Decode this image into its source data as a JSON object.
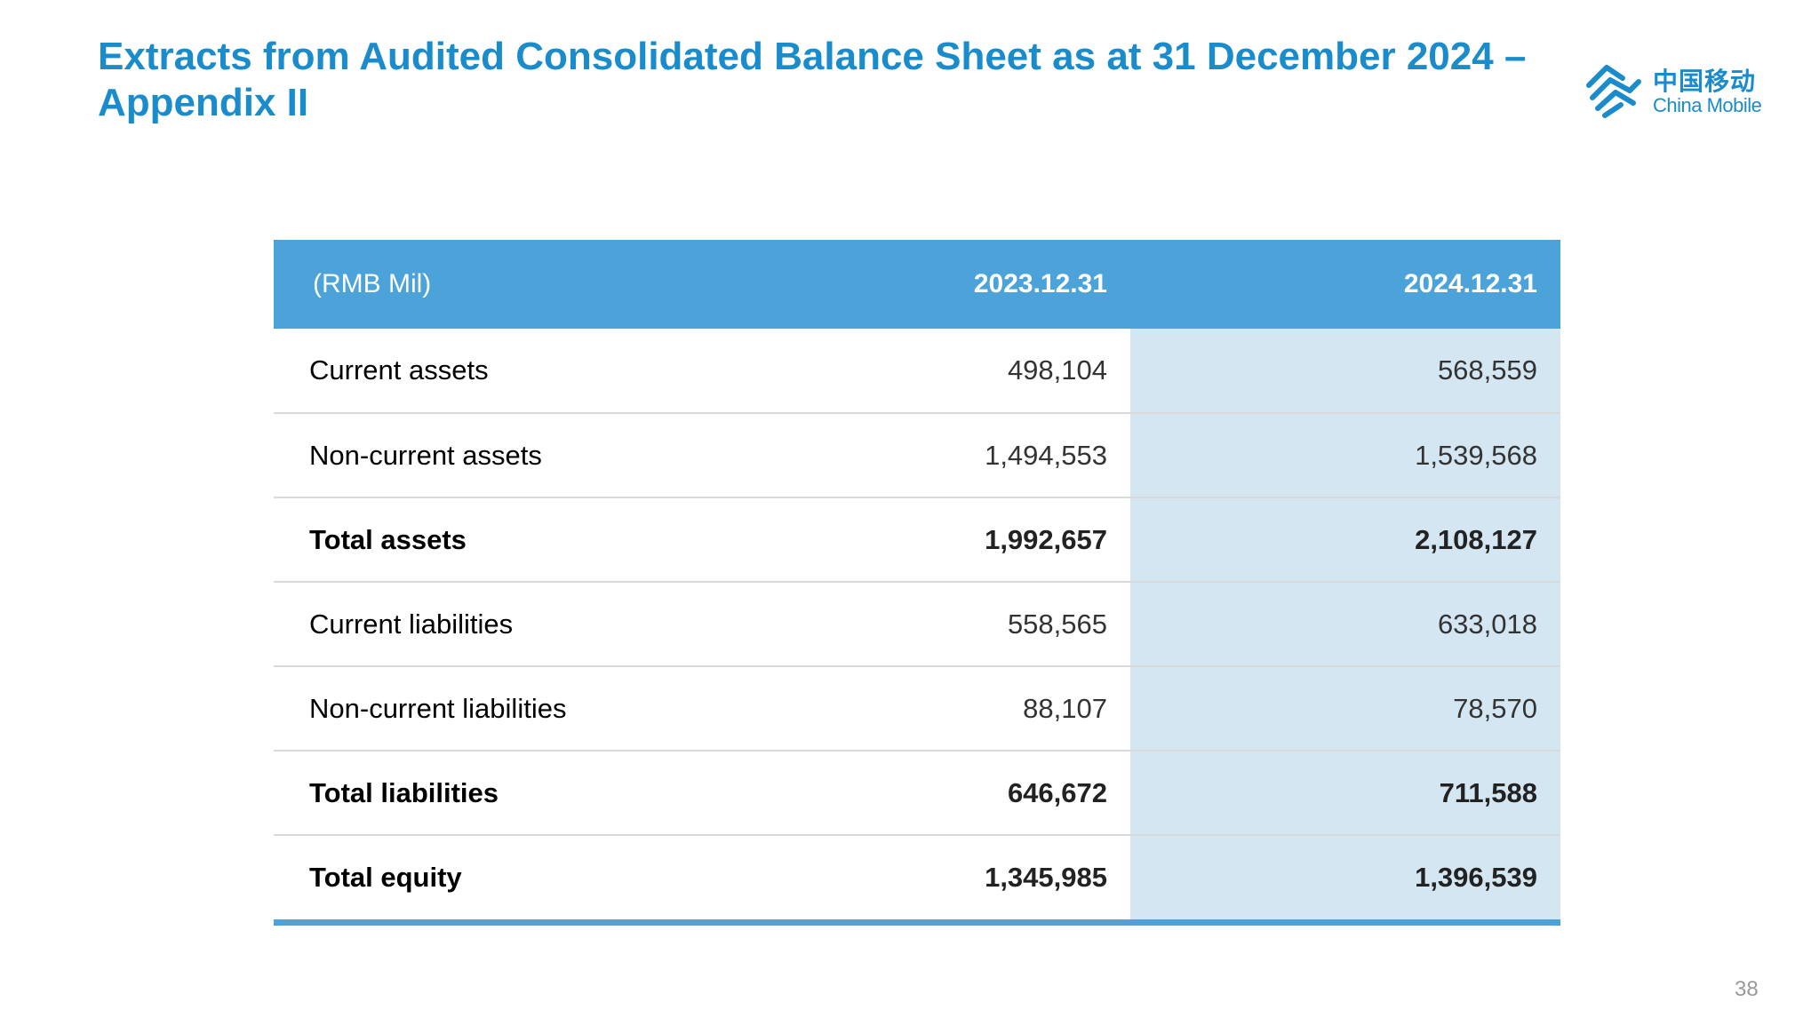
{
  "title": "Extracts from Audited Consolidated Balance Sheet as at 31 December 2024 – Appendix II",
  "logo": {
    "cn_text": "中国移动",
    "en_text": "China Mobile",
    "color": "#1a8ccc"
  },
  "table": {
    "headers": [
      "(RMB Mil)",
      "2023.12.31",
      "2024.12.31"
    ],
    "rows": [
      {
        "label": "Current assets",
        "v2023": "498,104",
        "v2024": "568,559",
        "bold": false
      },
      {
        "label": "Non-current assets",
        "v2023": "1,494,553",
        "v2024": "1,539,568",
        "bold": false
      },
      {
        "label": "Total assets",
        "v2023": "1,992,657",
        "v2024": "2,108,127",
        "bold": true
      },
      {
        "label": "Current liabilities",
        "v2023": "558,565",
        "v2024": "633,018",
        "bold": false
      },
      {
        "label": "Non-current liabilities",
        "v2023": "88,107",
        "v2024": "78,570",
        "bold": false
      },
      {
        "label": "Total liabilities",
        "v2023": "646,672",
        "v2024": "711,588",
        "bold": true
      },
      {
        "label": "Total equity",
        "v2023": "1,345,985",
        "v2024": "1,396,539",
        "bold": true
      }
    ],
    "header_color": "#4ba3d9",
    "highlight_color": "#d3e6f2"
  },
  "page_number": "38"
}
